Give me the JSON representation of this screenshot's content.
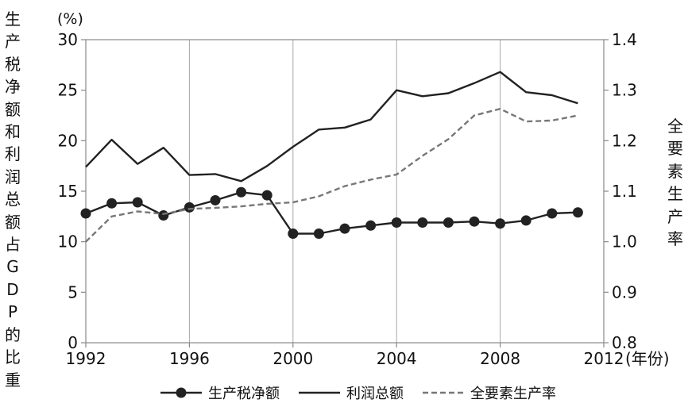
{
  "chart_data": {
    "type": "line",
    "ylabel_left": "生产税净额和利润总额占GDP的比重",
    "ylabel_left_unit": "(%)",
    "ylabel_right": "全要素生产率",
    "xlabel": "(年份)",
    "x_ticks": [
      "1992",
      "1996",
      "2000",
      "2004",
      "2008",
      "2012"
    ],
    "y_left_ticks": [
      "0",
      "5",
      "10",
      "15",
      "20",
      "25",
      "30"
    ],
    "y_right_ticks": [
      "0.8",
      "0.9",
      "1.0",
      "1.1",
      "1.2",
      "1.3",
      "1.4"
    ],
    "xlim": [
      1992,
      2012
    ],
    "ylim_left": [
      0,
      30
    ],
    "ylim_right": [
      0.8,
      1.4
    ],
    "grid": "vertical",
    "legend_position": "bottom",
    "x": [
      1992,
      1993,
      1994,
      1995,
      1996,
      1997,
      1998,
      1999,
      2000,
      2001,
      2002,
      2003,
      2004,
      2005,
      2006,
      2007,
      2008,
      2009,
      2010,
      2011
    ],
    "series": [
      {
        "name": "生产税净额",
        "axis": "left",
        "style": "solid-marker",
        "color": "#222222",
        "values": [
          12.8,
          13.8,
          13.9,
          12.6,
          13.4,
          14.1,
          14.9,
          14.6,
          10.8,
          10.8,
          11.3,
          11.6,
          11.9,
          11.9,
          11.9,
          12.0,
          11.8,
          12.1,
          12.8,
          12.9
        ]
      },
      {
        "name": "利润总额",
        "axis": "left",
        "style": "solid",
        "color": "#222222",
        "values": [
          17.4,
          20.1,
          17.7,
          19.3,
          16.6,
          16.7,
          16.0,
          17.5,
          19.4,
          21.1,
          21.3,
          22.1,
          25.0,
          24.4,
          24.7,
          25.7,
          26.8,
          24.8,
          24.5,
          23.7
        ]
      },
      {
        "name": "全要素生产率",
        "axis": "right",
        "style": "dashed",
        "color": "#777777",
        "values": [
          1.0,
          1.05,
          1.06,
          1.055,
          1.065,
          1.067,
          1.07,
          1.075,
          1.078,
          1.09,
          1.11,
          1.123,
          1.133,
          1.17,
          1.203,
          1.25,
          1.263,
          1.238,
          1.24,
          1.25
        ]
      }
    ]
  }
}
